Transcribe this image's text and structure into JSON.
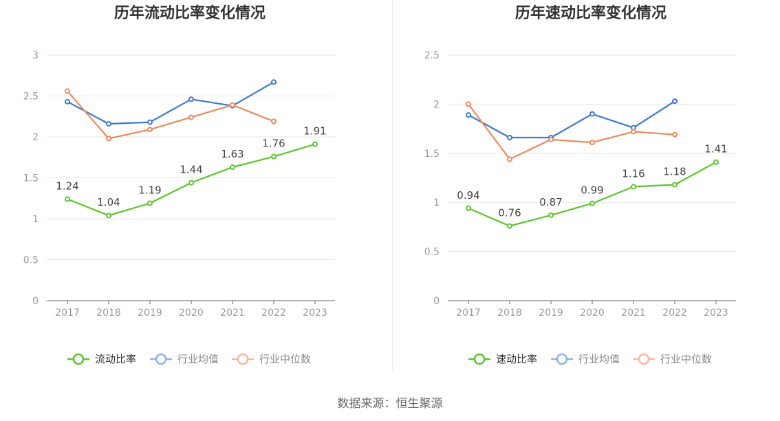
{
  "colors": {
    "company": "#5ac62b",
    "industry_avg": "#3b78d8",
    "industry_median": "#f0885a",
    "grid": "#e6e6e6",
    "axis": "#666666",
    "tick_text": "#999999",
    "title_text": "#333333"
  },
  "source": "数据来源：恒生聚源",
  "chart_data": [
    {
      "type": "line",
      "title": "历年流动比率变化情况",
      "categories": [
        "2017",
        "2018",
        "2019",
        "2020",
        "2021",
        "2022",
        "2023"
      ],
      "ylim": [
        0,
        3
      ],
      "yticks": [
        0,
        0.5,
        1,
        1.5,
        2,
        2.5,
        3
      ],
      "ytick_labels": [
        "0",
        "0.5",
        "1",
        "1.5",
        "2",
        "2.5",
        "3"
      ],
      "grid": true,
      "legend_position": "bottom",
      "series": [
        {
          "name": "流动比率",
          "color": "#5ac62b",
          "values": [
            1.24,
            1.04,
            1.19,
            1.44,
            1.63,
            1.76,
            1.91
          ],
          "labels": [
            "1.24",
            "1.04",
            "1.19",
            "1.44",
            "1.63",
            "1.76",
            "1.91"
          ]
        },
        {
          "name": "行业均值",
          "color": "#3b78d8",
          "values": [
            2.43,
            2.16,
            2.18,
            2.46,
            2.38,
            2.67,
            null
          ]
        },
        {
          "name": "行业中位数",
          "color": "#f0885a",
          "values": [
            2.56,
            1.98,
            2.09,
            2.24,
            2.39,
            2.19,
            null
          ]
        }
      ]
    },
    {
      "type": "line",
      "title": "历年速动比率变化情况",
      "categories": [
        "2017",
        "2018",
        "2019",
        "2020",
        "2021",
        "2022",
        "2023"
      ],
      "ylim": [
        0,
        2.5
      ],
      "yticks": [
        0,
        0.5,
        1,
        1.5,
        2,
        2.5
      ],
      "ytick_labels": [
        "0",
        "0.5",
        "1",
        "1.5",
        "2",
        "2.5"
      ],
      "grid": true,
      "legend_position": "bottom",
      "series": [
        {
          "name": "速动比率",
          "color": "#5ac62b",
          "values": [
            0.94,
            0.76,
            0.87,
            0.99,
            1.16,
            1.18,
            1.41
          ],
          "labels": [
            "0.94",
            "0.76",
            "0.87",
            "0.99",
            "1.16",
            "1.18",
            "1.41"
          ]
        },
        {
          "name": "行业均值",
          "color": "#3b78d8",
          "values": [
            1.89,
            1.66,
            1.66,
            1.9,
            1.76,
            2.03,
            null
          ]
        },
        {
          "name": "行业中位数",
          "color": "#f0885a",
          "values": [
            2.0,
            1.44,
            1.64,
            1.61,
            1.72,
            1.69,
            null
          ]
        }
      ]
    }
  ]
}
